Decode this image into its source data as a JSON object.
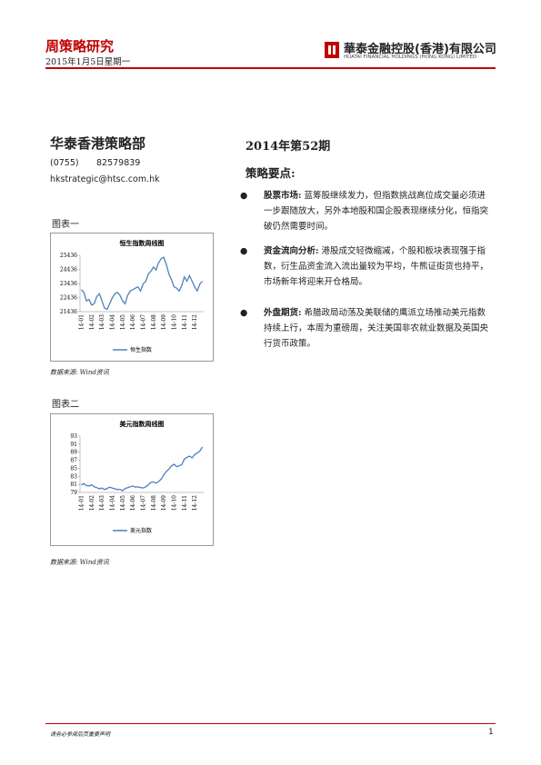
{
  "header": {
    "title": "周策略研究",
    "date": "2015年1月5日星期一",
    "company": "華泰金融控股(香港)有限公司",
    "company_en": "HUATAI FINANCIAL HOLDINGS (HONG KONG) LIMITED"
  },
  "left": {
    "dept": "华泰香港策略部",
    "phone": "(0755)",
    "phone_number": "82579839",
    "email": "hkstrategic@htsc.com.hk"
  },
  "figures": [
    {
      "label": "图表一",
      "source": "数据来源: Wind资讯"
    },
    {
      "label": "图表二",
      "source": "数据来源: Wind资讯"
    }
  ],
  "chart_data": [
    {
      "type": "line",
      "title": "恒生指数周线图",
      "name": "恒生指数",
      "color": "#4f81bd",
      "categories": [
        "14-01",
        null,
        null,
        null,
        "14-02",
        null,
        null,
        null,
        "14-03",
        null,
        null,
        null,
        "14-04",
        null,
        null,
        null,
        "14-05",
        null,
        null,
        null,
        "14-06",
        null,
        null,
        null,
        "14-07",
        null,
        null,
        null,
        "14-08",
        null,
        null,
        null,
        "14-09",
        null,
        null,
        null,
        "14-10",
        null,
        null,
        null,
        "14-11",
        null,
        null,
        null,
        "14-12",
        null,
        null,
        null
      ],
      "values": [
        23000,
        22800,
        22200,
        22300,
        21900,
        22000,
        22500,
        22700,
        22200,
        21700,
        21600,
        22000,
        22400,
        22700,
        22800,
        22600,
        22200,
        22000,
        22600,
        22900,
        23000,
        23100,
        23200,
        22900,
        23400,
        23600,
        24100,
        24300,
        24600,
        24400,
        24900,
        25200,
        25300,
        24800,
        24100,
        23700,
        23200,
        23100,
        22900,
        23300,
        23900,
        23600,
        24000,
        23600,
        23200,
        22900,
        23400,
        23600
      ],
      "ylim": [
        21436,
        25436
      ],
      "yticks": [
        21436,
        22436,
        23436,
        24436,
        25436
      ]
    },
    {
      "type": "line",
      "title": "美元指数周线图",
      "name": "美元指数",
      "color": "#4f81bd",
      "categories": [
        "14-01",
        null,
        null,
        null,
        "14-02",
        null,
        null,
        null,
        "14-03",
        null,
        null,
        null,
        "14-04",
        null,
        null,
        null,
        "14-05",
        null,
        null,
        null,
        "14-06",
        null,
        null,
        null,
        "14-07",
        null,
        null,
        null,
        "14-08",
        null,
        null,
        null,
        "14-09",
        null,
        null,
        null,
        "14-10",
        null,
        null,
        null,
        "14-11",
        null,
        null,
        null,
        "14-12",
        null,
        null,
        null
      ],
      "values": [
        80.9,
        81.2,
        80.7,
        80.6,
        80.9,
        80.4,
        80.2,
        79.9,
        80.1,
        79.7,
        80.0,
        80.3,
        80.1,
        79.9,
        79.7,
        79.8,
        79.4,
        80.0,
        80.2,
        80.4,
        80.6,
        80.3,
        80.4,
        80.2,
        80.1,
        80.4,
        80.9,
        81.5,
        81.6,
        81.3,
        81.7,
        82.3,
        83.4,
        84.2,
        84.8,
        85.6,
        86.0,
        85.4,
        85.6,
        85.9,
        87.3,
        87.7,
        88.0,
        87.6,
        88.4,
        88.8,
        89.3,
        90.3
      ],
      "ylim": [
        79,
        93
      ],
      "yticks": [
        79,
        81,
        83,
        85,
        87,
        89,
        91,
        93
      ]
    }
  ],
  "right": {
    "issue": "2014年第52期",
    "heading": "策略要点:",
    "bullets": [
      {
        "lead": "股票市场:",
        "text": "蓝筹股继续发力，但指数挑战高位成交量必须进一步跟随放大，另外本地股和国企股表现继续分化，恒指突破仍然需要时间。"
      },
      {
        "lead": "资金流向分析:",
        "text": "港股成交轻微缩减，个股和板块表现强于指数，衍生品资金流入流出量较为平均，牛熊证街货也持平，市场新年将迎来开仓格局。"
      },
      {
        "lead": "外盘期货:",
        "text": "希腊政局动荡及美联储的鹰派立场推动美元指数持续上行，本周为重磅周，关注美国非农就业数据及英国央行货币政策。"
      }
    ]
  },
  "footer": {
    "note": "请务必参阅后页重要声明",
    "page": "1"
  }
}
